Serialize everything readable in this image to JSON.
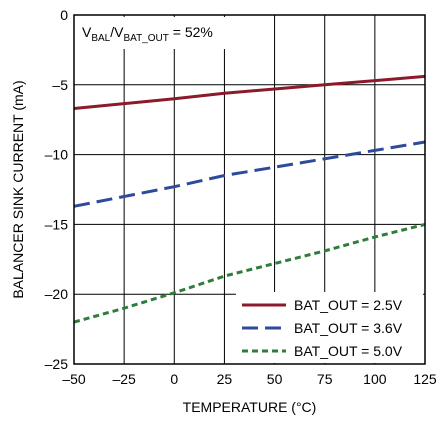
{
  "chart_data": {
    "type": "line",
    "xlabel": "TEMPERATURE (°C)",
    "ylabel": "BALANCER SINK CURRENT (mA)",
    "xlim": [
      -50,
      125
    ],
    "ylim": [
      -25,
      0
    ],
    "xticks": [
      -50,
      -25,
      0,
      25,
      50,
      75,
      100,
      125
    ],
    "yticks": [
      0,
      -5,
      -10,
      -15,
      -20,
      -25
    ],
    "xtick_labels": [
      "–50",
      "–25",
      "0",
      "25",
      "50",
      "75",
      "100",
      "125"
    ],
    "ytick_labels": [
      "0",
      "–5",
      "–10",
      "–15",
      "–20",
      "–25"
    ],
    "grid": true,
    "legend_position": "bottom-right",
    "annotation": {
      "v1": "V",
      "sub1": "BAL",
      "slash": "/V",
      "sub2": "BAT_OUT",
      "rest": " = 52%"
    },
    "series": [
      {
        "name": "BAT_OUT = 2.5V",
        "color": "#8b1a2b",
        "style": "solid",
        "x": [
          -50,
          -25,
          0,
          25,
          50,
          75,
          100,
          125
        ],
        "y": [
          -6.7,
          -6.35,
          -6.0,
          -5.6,
          -5.3,
          -5.0,
          -4.7,
          -4.4
        ]
      },
      {
        "name": "BAT_OUT = 3.6V",
        "color": "#2e4b9b",
        "style": "dashed",
        "x": [
          -50,
          -25,
          0,
          25,
          50,
          75,
          100,
          125
        ],
        "y": [
          -13.7,
          -13.0,
          -12.3,
          -11.5,
          -10.9,
          -10.3,
          -9.7,
          -9.1
        ]
      },
      {
        "name": "BAT_OUT = 5.0V",
        "color": "#2e7d3a",
        "style": "dotted-dash",
        "x": [
          -50,
          -25,
          0,
          25,
          50,
          75,
          100,
          125
        ],
        "y": [
          -22.0,
          -21.0,
          -19.9,
          -18.7,
          -17.8,
          -16.9,
          -15.9,
          -15.0
        ]
      }
    ]
  }
}
